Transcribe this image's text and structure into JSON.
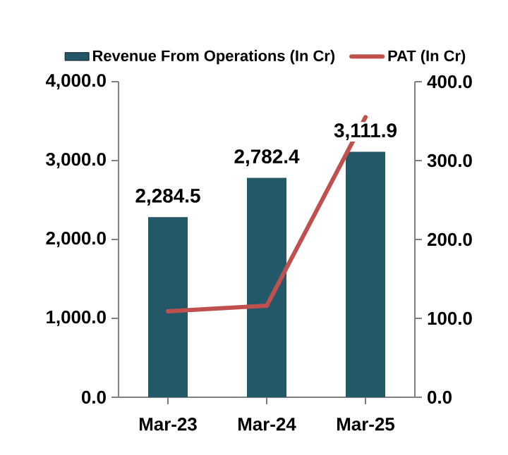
{
  "chart_data": {
    "type": "bar",
    "categories": [
      "Mar-23",
      "Mar-24",
      "Mar-25"
    ],
    "series": [
      {
        "name": "Revenue From Operations (In Cr)",
        "color": "#235868",
        "values": [
          2284.5,
          2782.4,
          3111.9
        ],
        "value_labels": [
          "2,284.5",
          "2,782.4",
          "3,111.9"
        ]
      },
      {
        "name": "PAT (In Cr)",
        "type": "line",
        "axis": "y2",
        "color": "#c0504d",
        "values": [
          109,
          116,
          355
        ]
      }
    ],
    "ylim": [
      0,
      4000
    ],
    "yticks": [
      {
        "value": 0,
        "label": "0.0"
      },
      {
        "value": 1000,
        "label": "1,000.0"
      },
      {
        "value": 2000,
        "label": "2,000.0"
      },
      {
        "value": 3000,
        "label": "3,000.0"
      },
      {
        "value": 4000,
        "label": "4,000.0"
      }
    ],
    "y2lim": [
      0,
      400
    ],
    "y2ticks": [
      {
        "value": 0,
        "label": "0.0"
      },
      {
        "value": 100,
        "label": "100.0"
      },
      {
        "value": 200,
        "label": "200.0"
      },
      {
        "value": 300,
        "label": "300.0"
      },
      {
        "value": 400,
        "label": "400.0"
      }
    ],
    "legend": "top",
    "grid": false,
    "marker": "none"
  }
}
